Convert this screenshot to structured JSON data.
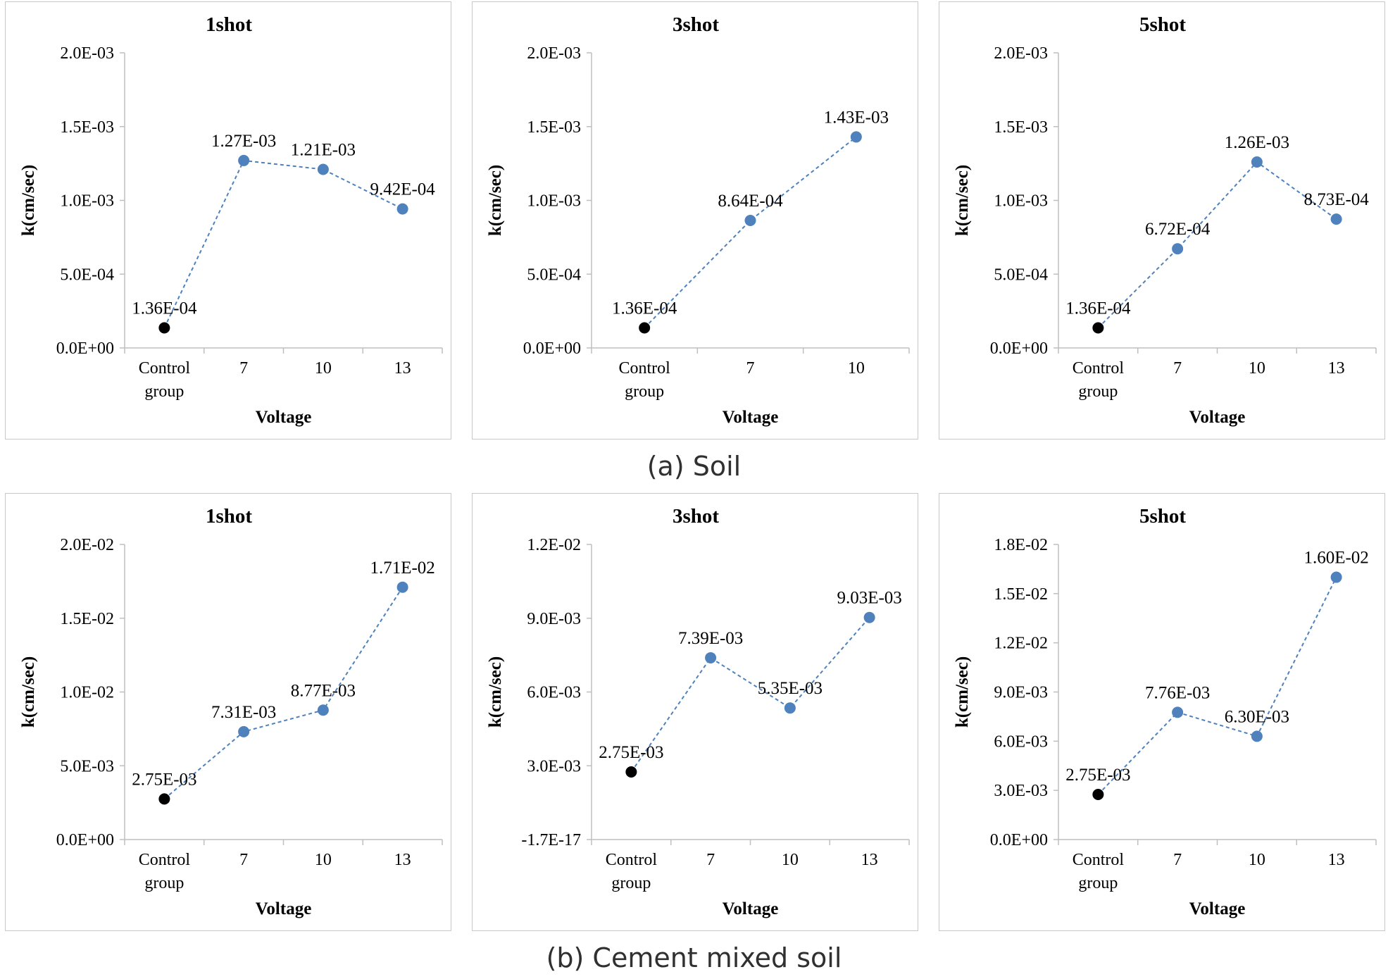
{
  "captions": {
    "soil": "(a) Soil",
    "cement": "(b) Cement mixed soil"
  },
  "colors": {
    "series": "#4f81bd",
    "control": "#000000",
    "axis": "#bfbfbf"
  },
  "chart_data": [
    {
      "type": "line",
      "group": "soil",
      "title": "1shot",
      "xlabel": "Voltage",
      "ylabel": "k(cm/sec)",
      "categories": [
        [
          "Control",
          "group"
        ],
        [
          "7"
        ],
        [
          "10"
        ],
        [
          "13"
        ]
      ],
      "values": [
        0.000136,
        0.00127,
        0.00121,
        0.000942
      ],
      "labels": [
        "1.36E-04",
        "1.27E-03",
        "1.21E-03",
        "9.42E-04"
      ],
      "ylim": [
        0,
        0.002
      ],
      "yticks": [
        0,
        0.0005,
        0.001,
        0.0015,
        0.002
      ],
      "yticklabels": [
        "0.0E+00",
        "5.0E-04",
        "1.0E-03",
        "1.5E-03",
        "2.0E-03"
      ],
      "grid": false
    },
    {
      "type": "line",
      "group": "soil",
      "title": "3shot",
      "xlabel": "Voltage",
      "ylabel": "k(cm/sec)",
      "categories": [
        [
          "Control",
          "group"
        ],
        [
          "7"
        ],
        [
          "10"
        ]
      ],
      "values": [
        0.000136,
        0.000864,
        0.00143
      ],
      "labels": [
        "1.36E-04",
        "8.64E-04",
        "1.43E-03"
      ],
      "ylim": [
        0,
        0.002
      ],
      "yticks": [
        0,
        0.0005,
        0.001,
        0.0015,
        0.002
      ],
      "yticklabels": [
        "0.0E+00",
        "5.0E-04",
        "1.0E-03",
        "1.5E-03",
        "2.0E-03"
      ],
      "grid": false
    },
    {
      "type": "line",
      "group": "soil",
      "title": "5shot",
      "xlabel": "Voltage",
      "ylabel": "k(cm/sec)",
      "categories": [
        [
          "Control",
          "group"
        ],
        [
          "7"
        ],
        [
          "10"
        ],
        [
          "13"
        ]
      ],
      "values": [
        0.000136,
        0.000672,
        0.00126,
        0.000873
      ],
      "labels": [
        "1.36E-04",
        "6.72E-04",
        "1.26E-03",
        "8.73E-04"
      ],
      "ylim": [
        0,
        0.002
      ],
      "yticks": [
        0,
        0.0005,
        0.001,
        0.0015,
        0.002
      ],
      "yticklabels": [
        "0.0E+00",
        "5.0E-04",
        "1.0E-03",
        "1.5E-03",
        "2.0E-03"
      ],
      "grid": false
    },
    {
      "type": "line",
      "group": "cement",
      "title": "1shot",
      "xlabel": "Voltage",
      "ylabel": "k(cm/sec)",
      "categories": [
        [
          "Control",
          "group"
        ],
        [
          "7"
        ],
        [
          "10"
        ],
        [
          "13"
        ]
      ],
      "values": [
        0.00275,
        0.00731,
        0.00877,
        0.0171
      ],
      "labels": [
        "2.75E-03",
        "7.31E-03",
        "8.77E-03",
        "1.71E-02"
      ],
      "ylim": [
        0,
        0.02
      ],
      "yticks": [
        0,
        0.005,
        0.01,
        0.015,
        0.02
      ],
      "yticklabels": [
        "0.0E+00",
        "5.0E-03",
        "1.0E-02",
        "1.5E-02",
        "2.0E-02"
      ],
      "grid": false
    },
    {
      "type": "line",
      "group": "cement",
      "title": "3shot",
      "xlabel": "Voltage",
      "ylabel": "k(cm/sec)",
      "categories": [
        [
          "Control",
          "group"
        ],
        [
          "7"
        ],
        [
          "10"
        ],
        [
          "13"
        ]
      ],
      "values": [
        0.00275,
        0.00739,
        0.00535,
        0.00903
      ],
      "labels": [
        "2.75E-03",
        "7.39E-03",
        "5.35E-03",
        "9.03E-03"
      ],
      "ylim": [
        0,
        0.012
      ],
      "yticks": [
        0,
        0.003,
        0.006,
        0.009,
        0.012
      ],
      "yticklabels": [
        "-1.7E-17",
        "3.0E-03",
        "6.0E-03",
        "9.0E-03",
        "1.2E-02"
      ],
      "grid": false
    },
    {
      "type": "line",
      "group": "cement",
      "title": "5shot",
      "xlabel": "Voltage",
      "ylabel": "k(cm/sec)",
      "categories": [
        [
          "Control",
          "group"
        ],
        [
          "7"
        ],
        [
          "10"
        ],
        [
          "13"
        ]
      ],
      "values": [
        0.00275,
        0.00776,
        0.0063,
        0.016
      ],
      "labels": [
        "2.75E-03",
        "7.76E-03",
        "6.30E-03",
        "1.60E-02"
      ],
      "ylim": [
        0,
        0.018
      ],
      "yticks": [
        0,
        0.003,
        0.006,
        0.009,
        0.012,
        0.015,
        0.018
      ],
      "yticklabels": [
        "0.0E+00",
        "3.0E-03",
        "6.0E-03",
        "9.0E-03",
        "1.2E-02",
        "1.5E-02",
        "1.8E-02"
      ],
      "grid": false
    }
  ]
}
